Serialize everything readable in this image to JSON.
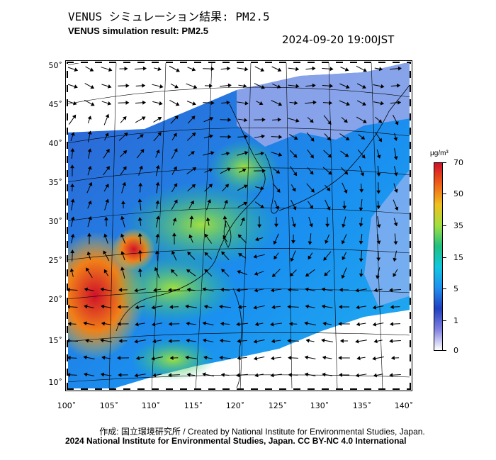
{
  "header": {
    "title_jp": "VENUS シミュレーション結果: PM2.5",
    "title_en": "VENUS simulation result: PM2.5",
    "timestamp": "2024-09-20 19:00JST"
  },
  "map": {
    "lat_labels": [
      "50˚",
      "45˚",
      "40˚",
      "35˚",
      "30˚",
      "25˚",
      "20˚",
      "15˚",
      "10˚"
    ],
    "lon_labels": [
      "100˚",
      "105˚",
      "110˚",
      "115˚",
      "120˚",
      "125˚",
      "130˚",
      "135˚",
      "140˚"
    ],
    "colors": {
      "ocean_low": "#1a7fe0",
      "land_high": "#e03010",
      "background": "#ffffff"
    }
  },
  "colorbar": {
    "unit": "μg/m³",
    "ticks": [
      "70",
      "50",
      "35",
      "15",
      "5",
      "1",
      "0"
    ],
    "stops": [
      "#d0102a",
      "#f06018",
      "#f0c020",
      "#a0e040",
      "#20c080",
      "#10c8e0",
      "#2090f0",
      "#2040c0",
      "#8080e0",
      "#ffffff"
    ]
  },
  "credits": {
    "line1": "作成: 国立環境研究所 / Created by National Institute for Environmental Studies, Japan.",
    "line2": "2024 National Institute for Environmental Studies, Japan. CC BY-NC 4.0 International"
  }
}
